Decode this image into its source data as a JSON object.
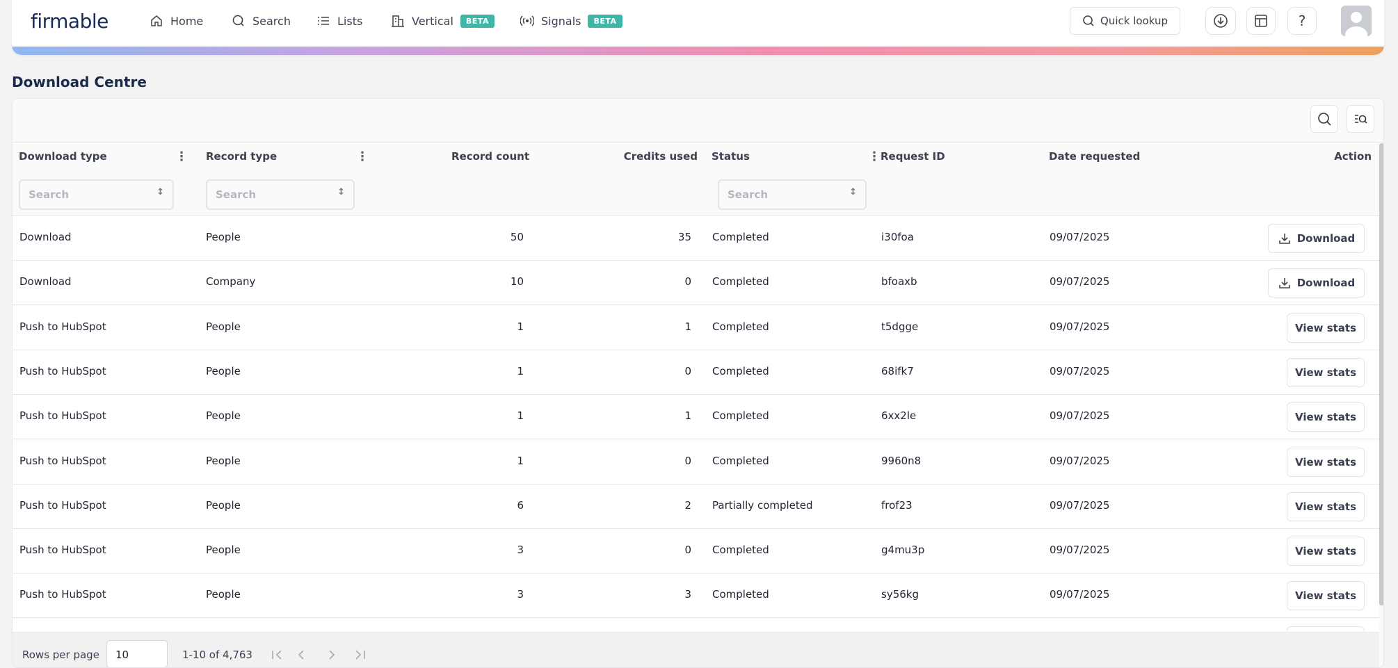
{
  "header": {
    "logo": "firmable",
    "nav": [
      {
        "label": "Home"
      },
      {
        "label": "Search"
      },
      {
        "label": "Lists"
      },
      {
        "label": "Vertical",
        "badge": "BETA"
      },
      {
        "label": "Signals",
        "badge": "BETA"
      }
    ],
    "quick_lookup": "Quick lookup"
  },
  "page_title": "Download Centre",
  "table": {
    "columns": [
      "Download type",
      "Record type",
      "Record count",
      "Credits used",
      "Status",
      "Request ID",
      "Date requested",
      "Action"
    ],
    "filter_placeholder": "Search",
    "rows": [
      {
        "download_type": "Download",
        "record_type": "People",
        "record_count": 50,
        "credits_used": 35,
        "status": "Completed",
        "request_id": "i30foa",
        "date_requested": "09/07/2025",
        "action": "Download"
      },
      {
        "download_type": "Download",
        "record_type": "Company",
        "record_count": 10,
        "credits_used": 0,
        "status": "Completed",
        "request_id": "bfoaxb",
        "date_requested": "09/07/2025",
        "action": "Download"
      },
      {
        "download_type": "Push to HubSpot",
        "record_type": "People",
        "record_count": 1,
        "credits_used": 1,
        "status": "Completed",
        "request_id": "t5dgge",
        "date_requested": "09/07/2025",
        "action": "View stats"
      },
      {
        "download_type": "Push to HubSpot",
        "record_type": "People",
        "record_count": 1,
        "credits_used": 0,
        "status": "Completed",
        "request_id": "68ifk7",
        "date_requested": "09/07/2025",
        "action": "View stats"
      },
      {
        "download_type": "Push to HubSpot",
        "record_type": "People",
        "record_count": 1,
        "credits_used": 1,
        "status": "Completed",
        "request_id": "6xx2le",
        "date_requested": "09/07/2025",
        "action": "View stats"
      },
      {
        "download_type": "Push to HubSpot",
        "record_type": "People",
        "record_count": 1,
        "credits_used": 0,
        "status": "Completed",
        "request_id": "9960n8",
        "date_requested": "09/07/2025",
        "action": "View stats"
      },
      {
        "download_type": "Push to HubSpot",
        "record_type": "People",
        "record_count": 6,
        "credits_used": 2,
        "status": "Partially completed",
        "request_id": "frof23",
        "date_requested": "09/07/2025",
        "action": "View stats"
      },
      {
        "download_type": "Push to HubSpot",
        "record_type": "People",
        "record_count": 3,
        "credits_used": 0,
        "status": "Completed",
        "request_id": "g4mu3p",
        "date_requested": "09/07/2025",
        "action": "View stats"
      },
      {
        "download_type": "Push to HubSpot",
        "record_type": "People",
        "record_count": 3,
        "credits_used": 3,
        "status": "Completed",
        "request_id": "sy56kg",
        "date_requested": "09/07/2025",
        "action": "View stats"
      }
    ]
  },
  "footer": {
    "rows_per_page_label": "Rows per page",
    "rows_per_page": "10",
    "range": "1-10 of 4,763"
  }
}
